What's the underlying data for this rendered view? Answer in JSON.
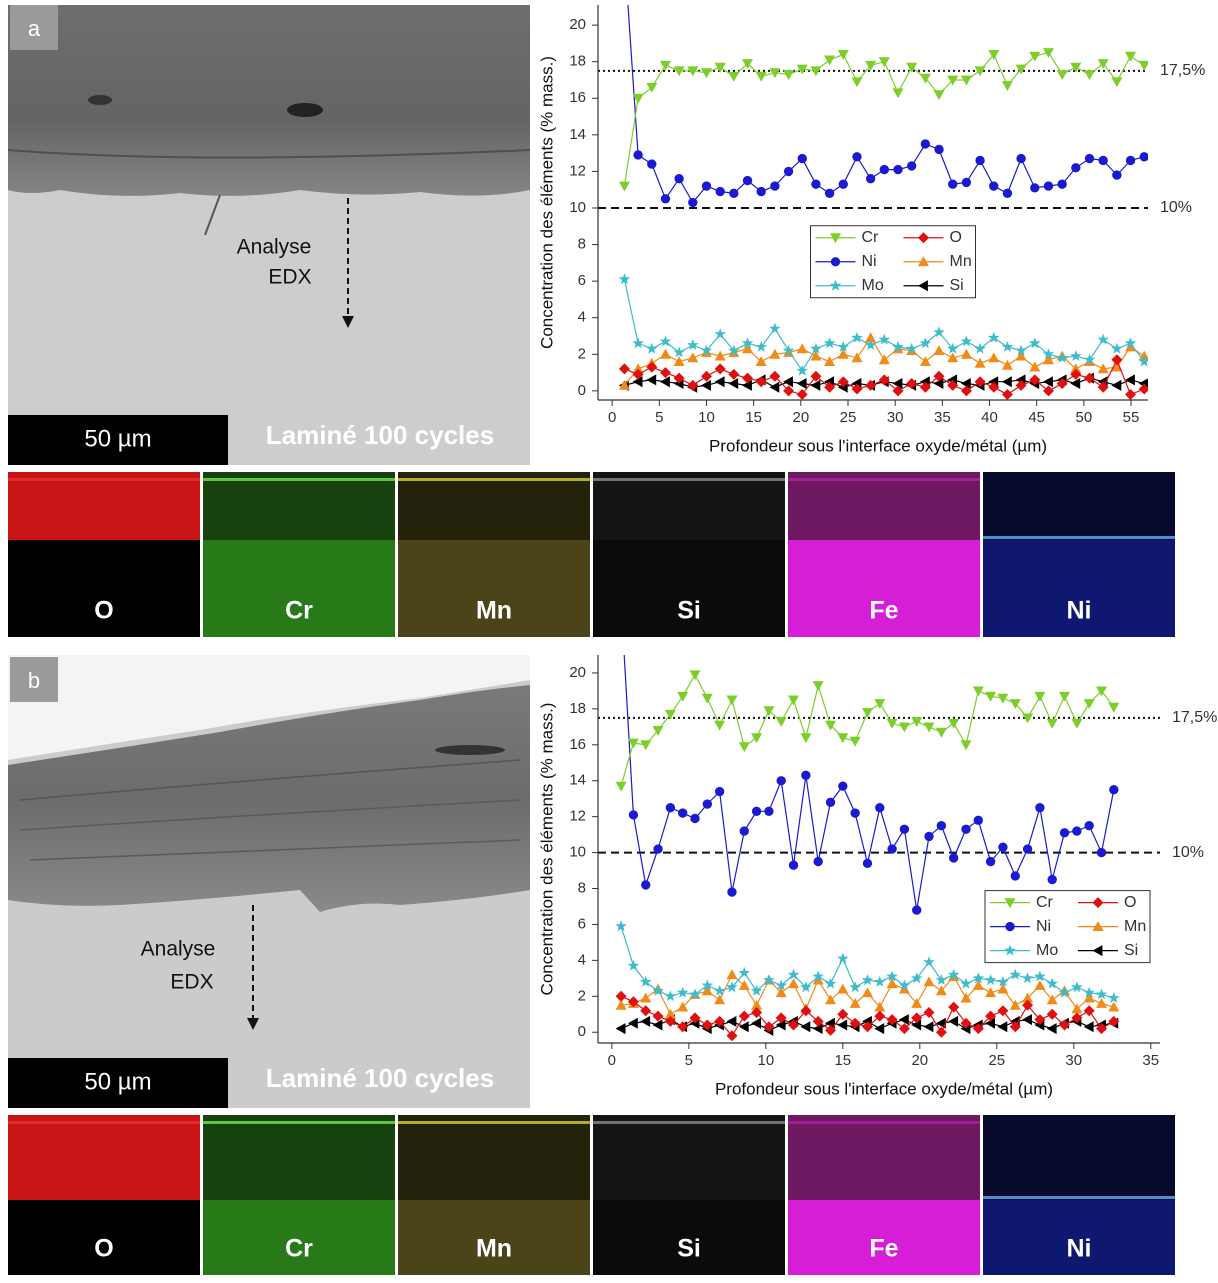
{
  "chart_data": [
    {
      "type": "line",
      "x_label": "Profondeur sous l'interface oxyde/métal (µm)",
      "y_label": "Concentration des éléments (% mass.)",
      "xlim": [
        -1.5,
        56.8
      ],
      "xticks": [
        0,
        5,
        10,
        15,
        20,
        25,
        30,
        35,
        40,
        45,
        50,
        55
      ],
      "ylim": [
        -0.5,
        21.1
      ],
      "yticks": [
        0,
        2,
        4,
        6,
        8,
        10,
        12,
        14,
        16,
        18,
        20
      ],
      "legend": "center",
      "ref_lines": [
        {
          "value": 17.5,
          "label": "17,5%",
          "style": "dotted"
        },
        {
          "value": 10,
          "label": "10%",
          "style": "dashed"
        }
      ],
      "x": [
        1.3,
        2.75,
        4.2,
        5.65,
        7.1,
        8.55,
        10,
        11.45,
        12.9,
        14.35,
        15.8,
        17.25,
        18.7,
        20.15,
        21.6,
        23.05,
        24.5,
        25.95,
        27.4,
        28.85,
        30.3,
        31.75,
        33.2,
        34.65,
        36.1,
        37.55,
        39,
        40.45,
        41.9,
        43.35,
        44.8,
        46.25,
        47.7,
        49.15,
        50.6,
        52.05,
        53.5,
        54.95,
        56.4
      ],
      "series": [
        {
          "name": "Cr",
          "color": "#7ccf2a",
          "marker": "triangle-down",
          "values": [
            11.2,
            16,
            16.6,
            17.8,
            17.5,
            17.5,
            17.4,
            17.7,
            17.2,
            17.9,
            17.2,
            17.4,
            17.3,
            17.6,
            17.5,
            18.1,
            18.4,
            16.9,
            17.8,
            18.0,
            16.3,
            17.7,
            17.1,
            16.2,
            17.0,
            17.0,
            17.5,
            18.4,
            16.7,
            17.6,
            18.3,
            18.5,
            17.3,
            17.7,
            17.3,
            17.9,
            16.9,
            18.3,
            17.8
          ]
        },
        {
          "name": "Ni",
          "color": "#1a1ad0",
          "marker": "circle",
          "values": [
            24,
            12.9,
            12.4,
            10.5,
            11.6,
            10.3,
            11.2,
            10.9,
            10.8,
            11.5,
            10.9,
            11.2,
            12.0,
            12.7,
            11.3,
            10.8,
            11.3,
            12.8,
            11.6,
            12.1,
            12.1,
            12.3,
            13.5,
            13.2,
            11.3,
            11.4,
            12.6,
            11.2,
            10.8,
            12.7,
            11.1,
            11.2,
            11.3,
            12.2,
            12.7,
            12.6,
            11.8,
            12.6,
            12.8
          ]
        },
        {
          "name": "Mo",
          "color": "#3cbccc",
          "marker": "star",
          "values": [
            6.1,
            2.6,
            2.3,
            2.7,
            2.1,
            2.5,
            2.2,
            3.1,
            2.2,
            2.6,
            2.4,
            3.4,
            2.2,
            1.1,
            2.3,
            2.6,
            2.4,
            2.9,
            2.5,
            2.8,
            2.4,
            2.3,
            2.6,
            3.2,
            2.3,
            2.7,
            2.3,
            2.9,
            2.4,
            2.2,
            2.6,
            2.0,
            1.8,
            1.9,
            1.7,
            2.8,
            2.3,
            2.6,
            1.6
          ]
        },
        {
          "name": "O",
          "color": "#e01010",
          "marker": "diamond",
          "values": [
            1.2,
            0.9,
            1.3,
            1.0,
            0.7,
            0.3,
            0.8,
            1.2,
            0.9,
            0.7,
            0.5,
            0.8,
            0,
            -0.2,
            0.8,
            0.2,
            0.5,
            0.1,
            0.3,
            0.6,
            0,
            0.4,
            0.2,
            0.8,
            0.3,
            0,
            0.5,
            0.2,
            -0.2,
            0.3,
            0.6,
            0,
            0.4,
            0.9,
            0.7,
            0.2,
            1.7,
            -0.2,
            0.1
          ]
        },
        {
          "name": "Mn",
          "color": "#f08a18",
          "marker": "triangle-up",
          "values": [
            0.3,
            1.2,
            1.5,
            2.0,
            1.6,
            1.8,
            2.1,
            1.9,
            2.1,
            2.3,
            1.6,
            2.0,
            2.1,
            2.3,
            1.9,
            1.6,
            2.0,
            1.8,
            2.9,
            1.7,
            2.3,
            2.2,
            1.6,
            2.2,
            1.8,
            2.0,
            1.5,
            1.8,
            1.4,
            1.9,
            1.3,
            1.7,
            1.9,
            1.2,
            1.6,
            1.2,
            1.3,
            2.4,
            1.9
          ]
        },
        {
          "name": "Si",
          "color": "#000000",
          "marker": "triangle-left",
          "values": [
            0.3,
            0.5,
            0.6,
            0.5,
            0.4,
            0.2,
            0.3,
            0.5,
            0.4,
            0.3,
            0.6,
            0.2,
            0.5,
            0.4,
            0.3,
            0.5,
            0.2,
            0.4,
            0.3,
            0.5,
            0.4,
            0.3,
            0.5,
            0.4,
            0.6,
            0.4,
            0.3,
            0.5,
            0.5,
            0.6,
            0.4,
            0.5,
            0.6,
            0.4,
            0.7,
            0.5,
            0.3,
            0.6,
            0.4
          ]
        }
      ]
    },
    {
      "type": "line",
      "x_label": "Profondeur sous l'interface oxyde/métal (µm)",
      "y_label": "Concentration des éléments (% mass.)",
      "xlim": [
        -0.9,
        35.6
      ],
      "xticks": [
        0,
        5,
        10,
        15,
        20,
        25,
        30,
        35
      ],
      "ylim": [
        -0.6,
        21
      ],
      "yticks": [
        0,
        2,
        4,
        6,
        8,
        10,
        12,
        14,
        16,
        18,
        20
      ],
      "legend": "center right",
      "ref_lines": [
        {
          "value": 17.5,
          "label": "17,5%",
          "style": "dotted"
        },
        {
          "value": 10,
          "label": "10%",
          "style": "dashed"
        }
      ],
      "x": [
        0.6,
        1.4,
        2.2,
        3.0,
        3.8,
        4.6,
        5.4,
        6.2,
        7.0,
        7.8,
        8.6,
        9.4,
        10.2,
        11.0,
        11.8,
        12.6,
        13.4,
        14.2,
        15.0,
        15.8,
        16.6,
        17.4,
        18.2,
        19.0,
        19.8,
        20.6,
        21.4,
        22.2,
        23.0,
        23.8,
        24.6,
        25.4,
        26.2,
        27.0,
        27.8,
        28.6,
        29.4,
        30.2,
        31.0,
        31.8,
        32.6
      ],
      "series": [
        {
          "name": "Cr",
          "color": "#7ccf2a",
          "marker": "triangle-down",
          "values": [
            13.7,
            16.1,
            16.0,
            16.8,
            17.7,
            18.7,
            19.9,
            18.6,
            17.1,
            18.5,
            15.9,
            16.4,
            17.9,
            17.3,
            18.5,
            16.4,
            19.3,
            17.1,
            16.4,
            16.2,
            17.8,
            18.3,
            17.2,
            17.0,
            17.3,
            17.0,
            16.7,
            17.2,
            16.0,
            19.0,
            18.7,
            18.6,
            18.3,
            17.5,
            18.7,
            17.2,
            18.7,
            17.2,
            18.3,
            19.0,
            18.1
          ]
        },
        {
          "name": "Ni",
          "color": "#1a1ad0",
          "marker": "circle",
          "values": [
            24,
            12.1,
            8.2,
            10.2,
            12.5,
            12.2,
            11.9,
            12.7,
            13.4,
            7.8,
            11.2,
            12.3,
            12.3,
            14.0,
            9.3,
            14.3,
            9.5,
            12.8,
            13.7,
            12.2,
            9.4,
            12.5,
            10.2,
            11.3,
            6.8,
            10.9,
            11.5,
            9.7,
            11.3,
            11.8,
            9.5,
            10.3,
            8.7,
            10.2,
            12.5,
            8.5,
            11.1,
            11.2,
            11.5,
            10.0,
            13.5
          ]
        },
        {
          "name": "Mo",
          "color": "#3cbccc",
          "marker": "star",
          "values": [
            5.9,
            3.7,
            2.8,
            2.3,
            2.0,
            2.2,
            2.1,
            2.6,
            2.3,
            2.5,
            3.3,
            2.3,
            2.9,
            2.6,
            3.2,
            2.5,
            3.1,
            2.7,
            4.1,
            2.5,
            2.9,
            2.8,
            3.1,
            2.6,
            3.0,
            3.9,
            2.9,
            3.2,
            2.7,
            3.0,
            2.9,
            2.8,
            3.2,
            3.0,
            3.1,
            2.7,
            2.2,
            2.5,
            2.2,
            2.1,
            1.9
          ]
        },
        {
          "name": "O",
          "color": "#e01010",
          "marker": "diamond",
          "values": [
            2.0,
            1.7,
            1.2,
            0.9,
            0.6,
            0.3,
            0.8,
            0.4,
            0.6,
            -0.2,
            0.9,
            1.1,
            0.3,
            0.8,
            0.4,
            1.2,
            0.6,
            0.1,
            1.0,
            0.5,
            0.3,
            0.9,
            0.7,
            0.2,
            0.8,
            1.1,
            0.0,
            1.4,
            0.5,
            0.2,
            0.9,
            1.2,
            0.3,
            1.5,
            0.7,
            1.0,
            0.4,
            0.8,
            1.2,
            0.2,
            0.6
          ]
        },
        {
          "name": "Mn",
          "color": "#f08a18",
          "marker": "triangle-up",
          "values": [
            1.5,
            1.6,
            1.9,
            2.4,
            1.0,
            1.4,
            2.1,
            2.3,
            1.8,
            3.2,
            2.6,
            1.5,
            2.9,
            2.2,
            2.7,
            1.3,
            2.9,
            1.8,
            2.4,
            1.6,
            2.2,
            1.4,
            2.7,
            2.4,
            1.6,
            2.8,
            2.3,
            3.1,
            1.9,
            2.6,
            2.2,
            2.4,
            1.5,
            1.9,
            2.6,
            1.8,
            2.3,
            1.3,
            1.9,
            1.6,
            1.4
          ]
        },
        {
          "name": "Si",
          "color": "#000000",
          "marker": "triangle-left",
          "values": [
            0.2,
            0.5,
            0.6,
            0.4,
            0.7,
            0.3,
            0.5,
            0.2,
            0.4,
            0.6,
            0.3,
            0.5,
            0.1,
            0.4,
            0.6,
            0.3,
            0.2,
            0.5,
            0.4,
            0.3,
            0.6,
            0.2,
            0.5,
            0.7,
            0.4,
            0.3,
            0.5,
            0.6,
            0.2,
            0.4,
            0.5,
            0.3,
            0.6,
            0.7,
            0.4,
            0.2,
            0.5,
            0.6,
            0.3,
            0.4,
            0.5
          ]
        }
      ]
    }
  ],
  "panels": [
    {
      "label": "a",
      "scale_bar": "50 µm",
      "caption": "Laminé 100 cycles",
      "analysis": [
        "Analyse",
        "EDX"
      ],
      "maps": [
        "O",
        "Cr",
        "Mn",
        "Si",
        "Fe",
        "Ni"
      ]
    },
    {
      "label": "b",
      "scale_bar": "50 µm",
      "caption": "Laminé 100 cycles",
      "analysis": [
        "Analyse",
        "EDX"
      ],
      "maps": [
        "O",
        "Cr",
        "Mn",
        "Si",
        "Fe",
        "Ni"
      ]
    }
  ]
}
